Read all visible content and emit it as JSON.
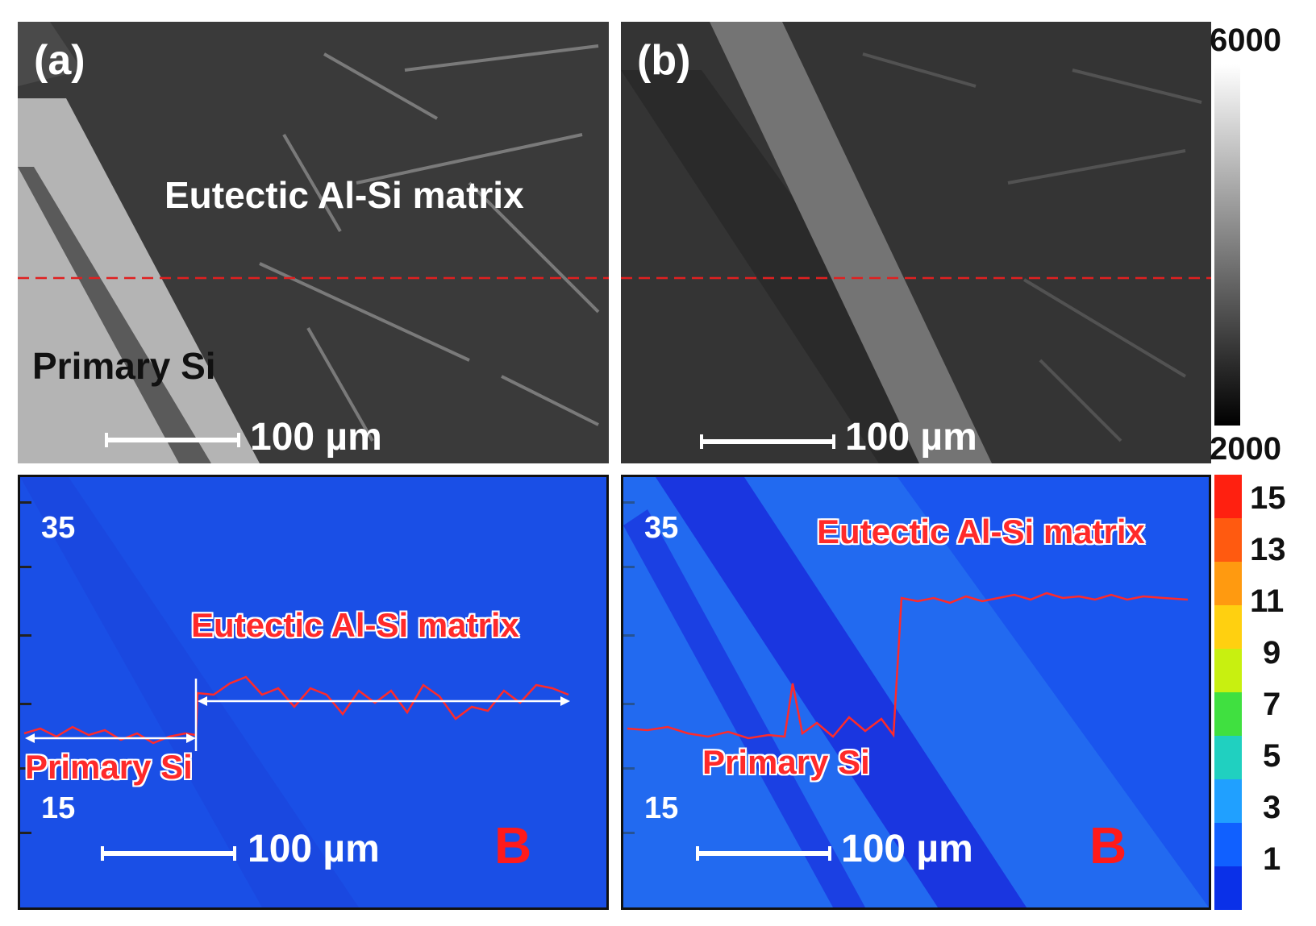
{
  "panels": {
    "a": {
      "tag": "(a)",
      "label_matrix": "Eutectic Al-Si matrix",
      "label_primary": "Primary Si",
      "scale": "100 µm"
    },
    "b": {
      "tag": "(b)",
      "scale": "100 µm"
    },
    "c": {
      "label_matrix": "Eutectic Al-Si matrix",
      "label_primary": "Primary Si",
      "axis_top": "35",
      "axis_bottom": "15",
      "scale": "100 µm",
      "element": "B"
    },
    "d": {
      "label_matrix": "Eutectic Al-Si matrix",
      "label_primary": "Primary Si",
      "axis_top": "35",
      "axis_bottom": "15",
      "scale": "100 µm",
      "element": "B"
    }
  },
  "gray_bar": {
    "max": "6000",
    "min": "2000"
  },
  "color_bar": {
    "ticks": [
      "15",
      "13",
      "11",
      "9",
      "7",
      "5",
      "3",
      "1"
    ],
    "colors": [
      "#ff2010",
      "#ff5a10",
      "#ff9a10",
      "#ffd010",
      "#c8f010",
      "#40e040",
      "#20d0c0",
      "#20a0ff",
      "#1060ff",
      "#0a30e8"
    ]
  },
  "line_color": "#ff2a2a",
  "dash_color": "#e02020"
}
